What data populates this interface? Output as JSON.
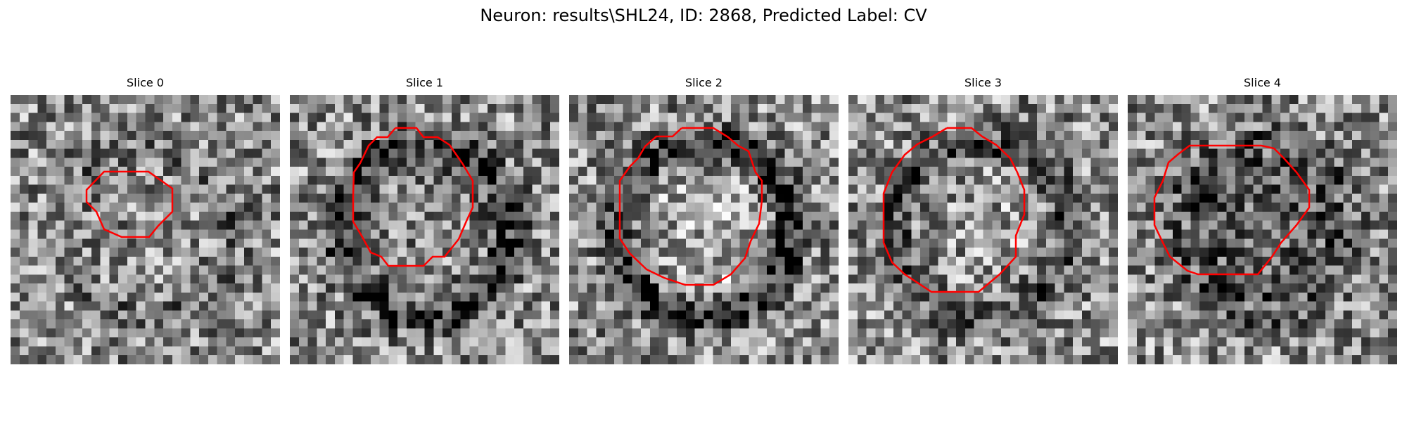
{
  "title": "Neuron: results\\SHL24, ID: 2868, Predicted Label: CV",
  "panels": [
    {
      "label": "Slice 0",
      "seed": 11,
      "ring": 0.2,
      "fill": 0.0,
      "contour_color": "#ff0000"
    },
    {
      "label": "Slice 1",
      "seed": 23,
      "ring": 0.55,
      "fill": 0.05,
      "contour_color": "#ff0000"
    },
    {
      "label": "Slice 2",
      "seed": 37,
      "ring": 0.65,
      "fill": -0.25,
      "contour_color": "#ff0000"
    },
    {
      "label": "Slice 3",
      "seed": 41,
      "ring": 0.45,
      "fill": -0.1,
      "contour_color": "#ff0000"
    },
    {
      "label": "Slice 4",
      "seed": 59,
      "ring": 0.35,
      "fill": 0.45,
      "contour_color": "#ff0000"
    }
  ],
  "colors": {
    "contour": "#ff0000",
    "background": "#ffffff"
  }
}
